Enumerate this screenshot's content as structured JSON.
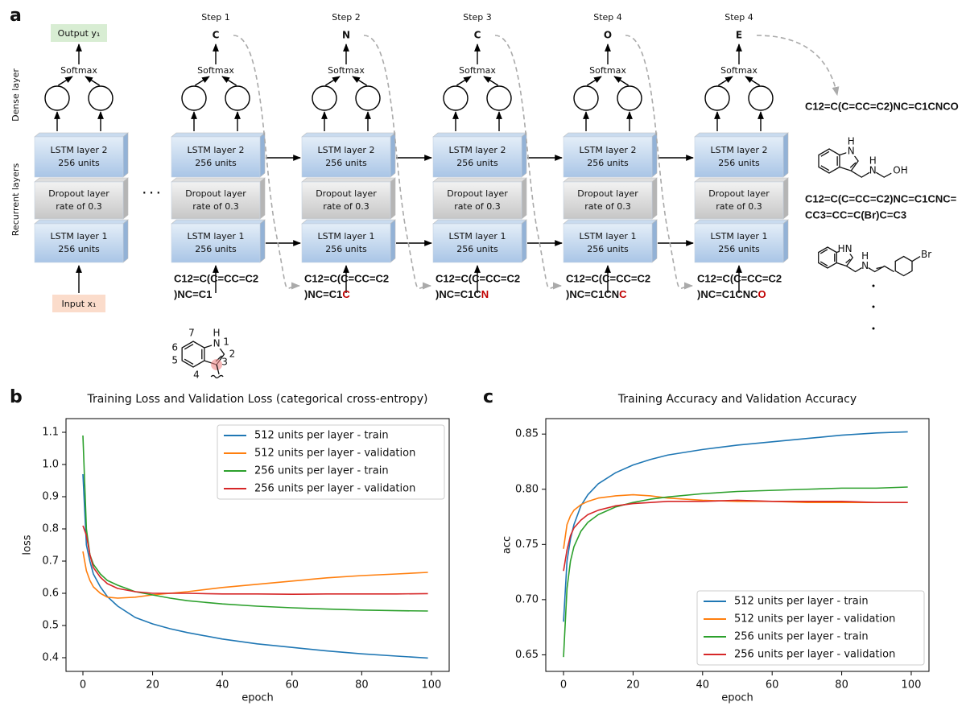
{
  "diagram": {
    "panel": "a",
    "side_labels": [
      "Dense layer",
      "Recurrent layers"
    ],
    "output": "Output y₁",
    "input": "Input x₁",
    "softmax": "Softmax",
    "ellipsis": "· · ·",
    "lstm2": [
      "LSTM layer 2",
      "256 units"
    ],
    "dropout": [
      "Dropout layer",
      "rate of 0.3"
    ],
    "lstm1": [
      "LSTM layer 1",
      "256 units"
    ],
    "steps": [
      {
        "label": "Step 1",
        "token": "C",
        "input": [
          "C12=C(C=CC=C2",
          ")NC=C1"
        ]
      },
      {
        "label": "Step 2",
        "token": "N",
        "input": [
          "C12=C(C=CC=C2",
          ")NC=C1"
        ],
        "input_new": "C"
      },
      {
        "label": "Step 3",
        "token": "C",
        "input": [
          "C12=C(C=CC=C2",
          ")NC=C1C"
        ],
        "input_new": "N"
      },
      {
        "label": "Step 4",
        "token": "O",
        "input": [
          "C12=C(C=CC=C2",
          ")NC=C1CN"
        ],
        "input_new": "C"
      },
      {
        "label": "Step 4",
        "token": "E",
        "input": [
          "C12=C(C=CC=C2",
          ")NC=C1CNC"
        ],
        "input_new": "O"
      }
    ],
    "indole": {
      "numbers": [
        "1",
        "2",
        "3",
        "4",
        "5",
        "6",
        "7"
      ],
      "atoms": [
        "N",
        "H"
      ]
    },
    "results": [
      {
        "smiles": [
          "C12=C(C=CC=C2)NC=C1CNCO"
        ],
        "atoms": [
          "H",
          "N",
          "H",
          "N",
          "OH"
        ]
      },
      {
        "smiles": [
          "C12=C(C=CC=C2)NC=C1CNC=",
          "CC3=CC=C(Br)C=C3"
        ],
        "atoms": [
          "HN",
          "H",
          "N",
          "Br"
        ]
      }
    ]
  },
  "chart_data": [
    {
      "type": "line",
      "panel": "b",
      "title": "Training Loss and Validation Loss (categorical cross-entropy)",
      "x_label": "epoch",
      "y_label": "loss",
      "legend": "upper right",
      "xlim": [
        -4.85,
        105.1
      ],
      "xticks": [
        0,
        20,
        40,
        60,
        80,
        100
      ],
      "ylim": [
        0.3575,
        1.1425
      ],
      "yticks": [
        0.4,
        0.5,
        0.6,
        0.7,
        0.8,
        0.9,
        {
          "value": 1,
          "label": "1.0"
        },
        1.1
      ],
      "x": [
        0,
        1,
        2,
        3,
        5,
        7,
        10,
        15,
        20,
        25,
        30,
        40,
        50,
        60,
        70,
        80,
        90,
        99
      ],
      "series": [
        {
          "name": "512 units per layer - train",
          "color": "#1f77b4",
          "values": [
            0.97,
            0.75,
            0.7,
            0.66,
            0.62,
            0.59,
            0.56,
            0.525,
            0.505,
            0.49,
            0.478,
            0.458,
            0.443,
            0.432,
            0.421,
            0.412,
            0.405,
            0.399
          ]
        },
        {
          "name": "512 units per layer - validation",
          "color": "#ff7f0e",
          "values": [
            0.73,
            0.67,
            0.64,
            0.62,
            0.6,
            0.588,
            0.585,
            0.588,
            0.595,
            0.6,
            0.605,
            0.618,
            0.628,
            0.638,
            0.648,
            0.655,
            0.66,
            0.665
          ]
        },
        {
          "name": "256 units per layer - train",
          "color": "#2ca02c",
          "values": [
            1.09,
            0.8,
            0.72,
            0.69,
            0.66,
            0.64,
            0.625,
            0.605,
            0.595,
            0.585,
            0.577,
            0.567,
            0.56,
            0.555,
            0.551,
            0.548,
            0.546,
            0.545
          ]
        },
        {
          "name": "256 units per layer - validation",
          "color": "#d62728",
          "values": [
            0.81,
            0.78,
            0.72,
            0.68,
            0.65,
            0.63,
            0.615,
            0.605,
            0.6,
            0.6,
            0.6,
            0.598,
            0.598,
            0.597,
            0.598,
            0.598,
            0.598,
            0.599
          ]
        }
      ]
    },
    {
      "type": "line",
      "panel": "c",
      "title": "Training Accuracy and Validation Accuracy",
      "x_label": "epoch",
      "y_label": "acc",
      "legend": "lower right",
      "xlim": [
        -5.1,
        105.1
      ],
      "xticks": [
        0,
        20,
        40,
        60,
        80,
        100
      ],
      "ylim": [
        0.635,
        0.864
      ],
      "yticks": [
        0.65,
        {
          "value": 0.7,
          "label": "0.70"
        },
        0.75,
        {
          "value": 0.8,
          "label": "0.80"
        },
        0.85
      ],
      "x": [
        0,
        1,
        2,
        3,
        5,
        7,
        10,
        15,
        20,
        25,
        30,
        40,
        50,
        60,
        70,
        80,
        90,
        99
      ],
      "series": [
        {
          "name": "512 units per layer - train",
          "color": "#1f77b4",
          "values": [
            0.68,
            0.735,
            0.755,
            0.768,
            0.785,
            0.795,
            0.805,
            0.815,
            0.822,
            0.827,
            0.831,
            0.836,
            0.84,
            0.843,
            0.846,
            0.849,
            0.851,
            0.852
          ]
        },
        {
          "name": "512 units per layer - validation",
          "color": "#ff7f0e",
          "values": [
            0.746,
            0.768,
            0.776,
            0.781,
            0.786,
            0.789,
            0.792,
            0.794,
            0.795,
            0.794,
            0.792,
            0.79,
            0.789,
            0.789,
            0.788,
            0.788,
            0.788,
            0.788
          ]
        },
        {
          "name": "256 units per layer - train",
          "color": "#2ca02c",
          "values": [
            0.648,
            0.71,
            0.735,
            0.748,
            0.762,
            0.77,
            0.777,
            0.784,
            0.788,
            0.791,
            0.793,
            0.796,
            0.798,
            0.799,
            0.8,
            0.801,
            0.801,
            0.802
          ]
        },
        {
          "name": "256 units per layer - validation",
          "color": "#d62728",
          "values": [
            0.726,
            0.745,
            0.758,
            0.765,
            0.772,
            0.777,
            0.781,
            0.785,
            0.787,
            0.788,
            0.789,
            0.789,
            0.79,
            0.789,
            0.789,
            0.789,
            0.788,
            0.788
          ]
        }
      ]
    }
  ]
}
